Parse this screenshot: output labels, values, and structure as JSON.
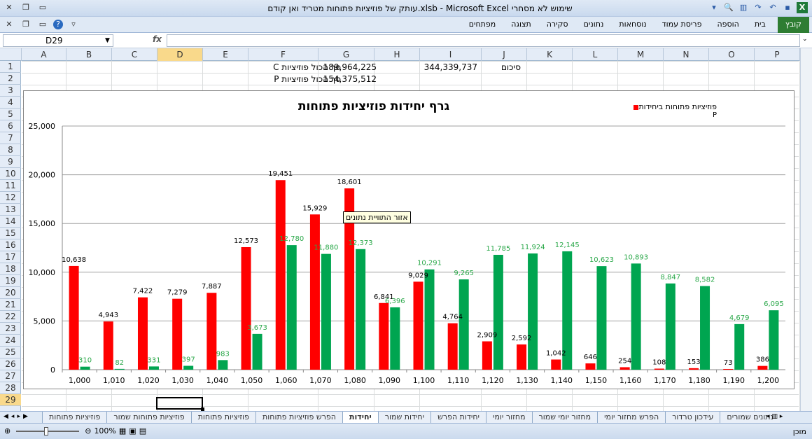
{
  "window": {
    "title": "עותק של פוזיציות פתוחות מטריד ואן קודם.xlsb - Microsoft Excel  שימוש לא מסחרי"
  },
  "ribbon": {
    "tabs": [
      "קובץ",
      "בית",
      "הוספה",
      "פריסת עמוד",
      "נוסחאות",
      "נתונים",
      "סקירה",
      "תצוגה",
      "מפתחים"
    ]
  },
  "formula_bar": {
    "name_box": "D29",
    "fx": "fx",
    "formula": ""
  },
  "columns": [
    "A",
    "B",
    "C",
    "D",
    "E",
    "F",
    "G",
    "H",
    "I",
    "J",
    "K",
    "L",
    "M",
    "N",
    "O",
    "P"
  ],
  "selected_column": "D",
  "rows": [
    "1",
    "2",
    "3",
    "4",
    "5",
    "6",
    "7",
    "8",
    "9",
    "10",
    "11",
    "12",
    "13",
    "14",
    "15",
    "16",
    "17",
    "18",
    "19",
    "20",
    "21",
    "22",
    "23",
    "24",
    "25",
    "26",
    "27",
    "28",
    "29"
  ],
  "selected_row": "29",
  "cells": {
    "F1": "סך הכול פוזיציות C",
    "F2": "סך הכול פוזיציות P",
    "G1": "189,964,225",
    "G2": "154,375,512",
    "I1": "344,339,737",
    "J1": "סיכום"
  },
  "chart_data": {
    "type": "bar",
    "title": "גרף יחידות פוזיציות פתוחות",
    "legend": {
      "red_label": "פוזיציות פתוחות ביחידות",
      "second_line": "P",
      "placement": "top-right"
    },
    "categories": [
      "1,000",
      "1,010",
      "1,020",
      "1,030",
      "1,040",
      "1,050",
      "1,060",
      "1,070",
      "1,080",
      "1,090",
      "1,100",
      "1,110",
      "1,120",
      "1,130",
      "1,140",
      "1,150",
      "1,160",
      "1,170",
      "1,180",
      "1,190",
      "1,200"
    ],
    "series": [
      {
        "color": "#ff0000",
        "values": [
          10638,
          4943,
          7422,
          7279,
          7887,
          12573,
          19451,
          15929,
          18601,
          6841,
          9029,
          4764,
          2909,
          2592,
          1042,
          646,
          254,
          108,
          153,
          73,
          386
        ]
      },
      {
        "color": "#00a550",
        "values": [
          310,
          82,
          331,
          397,
          983,
          3673,
          12780,
          11880,
          12373,
          6396,
          10291,
          9265,
          11785,
          11924,
          12145,
          10623,
          10893,
          8847,
          8582,
          4679,
          6095
        ]
      }
    ],
    "red_labels": [
      "10,638",
      "4,943",
      "7,422",
      "7,279",
      "7,887",
      "12,573",
      "19,451",
      "15,929",
      "18,601",
      "6,841",
      "9,029",
      "4,764",
      "2,909",
      "2,592",
      "1,042",
      "646",
      "254",
      "108",
      "153",
      "73",
      "386"
    ],
    "green_labels": [
      "310",
      "82",
      "331",
      "397",
      "983",
      "3,673",
      "12,780",
      "11,880",
      "12,373",
      "6,396",
      "10,291",
      "9,265",
      "11,785",
      "11,924",
      "12,145",
      "10,623",
      "10,893",
      "8,847",
      "8,582",
      "4,679",
      "6,095"
    ],
    "yticks": [
      "0",
      "5,000",
      "10,000",
      "15,000",
      "20,000",
      "25,000"
    ],
    "ylim": [
      0,
      25000
    ],
    "grid": true
  },
  "tooltip": "אזור התוויית נתונים",
  "sheet_tabs": [
    "פוזיציות פתוחות",
    "פוזיציות פתוחות שמור",
    "פוזיציות פתוחות",
    "הפרש פוזיציות פתוחות",
    "יחידות",
    "יחידות שמור",
    "יחידות הפרש",
    "מחזור יומי",
    "מחזור יומי שמור",
    "הפרש מחזור יומי",
    "עידכון טרדור",
    "נתונים שמורים"
  ],
  "active_sheet": "יחידות",
  "status": {
    "ready": "מוכן",
    "zoom": "100%"
  }
}
